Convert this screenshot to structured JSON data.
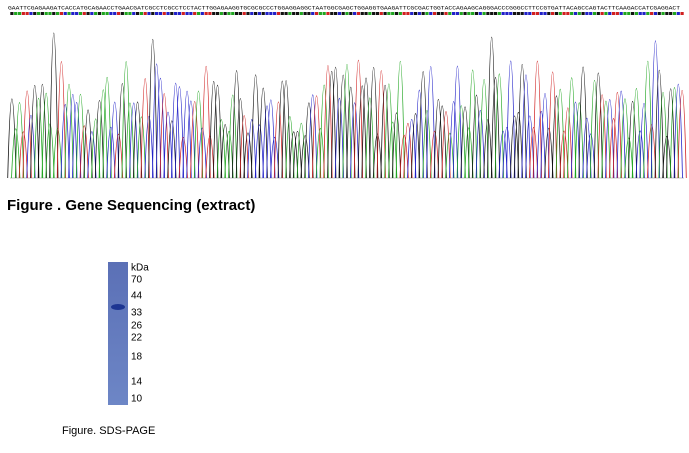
{
  "sequencing": {
    "sequence": "GAATTCGAGAAGATCACCATGCAGAACCTGAACGATCGCCTCGCCTCCTACTTGGAGAAGGTGCGCGCCCTGGAGGAGGCTAATGGCGAGCTGGAGGTGAAGATTCGCGACTGGTACCAGAAGCAGGGACCCGGGCCTTCCGTGATTACAGCCAGTACTTCAAGACCATCGAGGACT",
    "caption": "Figure . Gene Sequencing (extract)"
  },
  "gel": {
    "unit": "kDa",
    "markers": [
      70,
      44,
      33,
      26,
      22,
      18,
      14,
      10
    ],
    "caption": "Figure. SDS-PAGE"
  }
}
